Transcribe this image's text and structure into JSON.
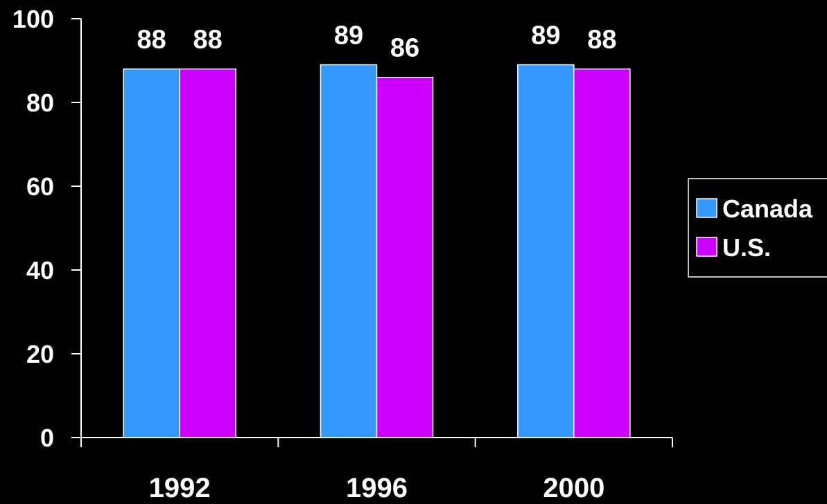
{
  "chart_data": {
    "type": "bar",
    "title": "",
    "xlabel": "",
    "ylabel": "",
    "categories": [
      "1992",
      "1996",
      "2000"
    ],
    "series": [
      {
        "name": "Canada",
        "values": [
          88,
          89,
          89
        ],
        "color": "#3399ff"
      },
      {
        "name": "U.S.",
        "values": [
          88,
          86,
          88
        ],
        "color": "#cc00ff"
      }
    ],
    "data_labels": [
      [
        "88",
        "89",
        "89"
      ],
      [
        "88",
        "86",
        "88"
      ]
    ],
    "ylim": [
      0,
      100
    ],
    "yticks": [
      "0",
      "20",
      "40",
      "60",
      "80",
      "100"
    ],
    "grid": false,
    "legend": {
      "position": "right",
      "entries": [
        "Canada",
        "U.S."
      ]
    },
    "colors": {
      "background": "#000000",
      "axis": "#ffffff",
      "text": "#ffffff"
    }
  }
}
